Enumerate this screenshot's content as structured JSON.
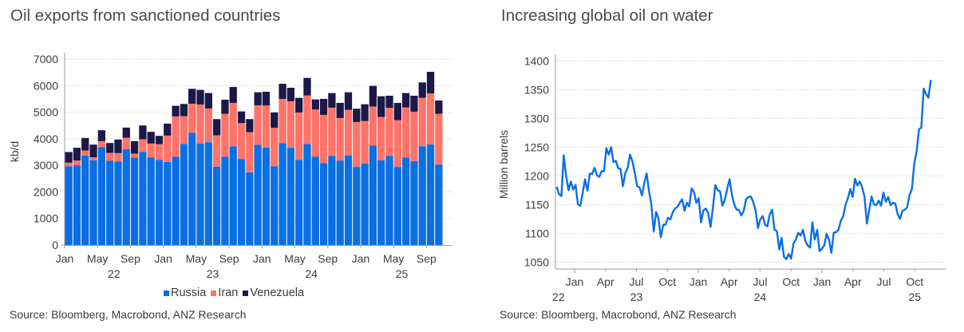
{
  "sources": {
    "left": "Source: Bloomberg, Macrobond, ANZ Research",
    "right": "Source: Bloomberg, Macrobond, ANZ Research"
  },
  "colors": {
    "russia": "#0a6fe3",
    "iran": "#ff7369",
    "venezuela": "#1c1848",
    "line": "#0a6fe3",
    "grid": "#d6d6d6",
    "axis": "#9a9a9a"
  },
  "chart_data": [
    {
      "type": "bar",
      "stacked": true,
      "title": "Oil exports from sanctioned countries",
      "xlabel": "",
      "ylabel": "kb/d",
      "ylim": [
        0,
        7000
      ],
      "yticks": [
        0,
        1000,
        2000,
        3000,
        4000,
        5000,
        6000,
        7000
      ],
      "grid": true,
      "legend_position": "bottom",
      "period": "monthly, Jan 2022 - Oct 2025",
      "x_tick_labels": [
        {
          "index": 0,
          "label": "Jan"
        },
        {
          "index": 4,
          "label": "May"
        },
        {
          "index": 8,
          "label": "Sep"
        },
        {
          "index": 12,
          "label": "Jan"
        },
        {
          "index": 16,
          "label": "May"
        },
        {
          "index": 20,
          "label": "Sep"
        },
        {
          "index": 24,
          "label": "Jan"
        },
        {
          "index": 28,
          "label": "May"
        },
        {
          "index": 32,
          "label": "Sep"
        },
        {
          "index": 36,
          "label": "Jan"
        },
        {
          "index": 40,
          "label": "May"
        },
        {
          "index": 44,
          "label": "Sep"
        }
      ],
      "year_labels": [
        {
          "center_index": 6,
          "label": "22"
        },
        {
          "center_index": 18,
          "label": "23"
        },
        {
          "center_index": 30,
          "label": "24"
        },
        {
          "center_index": 41,
          "label": "25"
        }
      ],
      "categories": [
        "Jan 22",
        "Feb 22",
        "Mar 22",
        "Apr 22",
        "May 22",
        "Jun 22",
        "Jul 22",
        "Aug 22",
        "Sep 22",
        "Oct 22",
        "Nov 22",
        "Dec 22",
        "Jan 23",
        "Feb 23",
        "Mar 23",
        "Apr 23",
        "May 23",
        "Jun 23",
        "Jul 23",
        "Aug 23",
        "Sep 23",
        "Oct 23",
        "Nov 23",
        "Dec 23",
        "Jan 24",
        "Feb 24",
        "Mar 24",
        "Apr 24",
        "May 24",
        "Jun 24",
        "Jul 24",
        "Aug 24",
        "Sep 24",
        "Oct 24",
        "Nov 24",
        "Dec 24",
        "Jan 25",
        "Feb 25",
        "Mar 25",
        "Apr 25",
        "May 25",
        "Jun 25",
        "Jul 25",
        "Aug 25",
        "Sep 25",
        "Oct 25"
      ],
      "series": [
        {
          "name": "Russia",
          "color_key": "russia",
          "values": [
            2960,
            3000,
            3370,
            3190,
            3680,
            3170,
            3140,
            3610,
            3290,
            3510,
            3300,
            3200,
            3130,
            3320,
            3810,
            4230,
            3820,
            3870,
            2950,
            3330,
            3720,
            3240,
            2740,
            3770,
            3670,
            2960,
            3830,
            3660,
            3210,
            3800,
            3330,
            3090,
            3360,
            3180,
            3370,
            2940,
            3070,
            3750,
            3190,
            3360,
            2940,
            3300,
            3160,
            3720,
            3790,
            3030
          ]
        },
        {
          "name": "Iran",
          "color_key": "iran",
          "values": [
            140,
            180,
            190,
            110,
            230,
            300,
            320,
            430,
            150,
            470,
            520,
            600,
            990,
            1520,
            1040,
            1090,
            1470,
            1270,
            1180,
            1610,
            1630,
            1350,
            1510,
            1490,
            1580,
            1450,
            1670,
            1750,
            1780,
            1830,
            1770,
            1810,
            1810,
            1600,
            1720,
            1690,
            1600,
            1460,
            1630,
            1800,
            1760,
            1880,
            1860,
            1820,
            1920,
            1910
          ]
        },
        {
          "name": "Venezuela",
          "color_key": "venezuela",
          "values": [
            400,
            480,
            470,
            480,
            410,
            370,
            510,
            380,
            470,
            520,
            440,
            310,
            450,
            400,
            460,
            560,
            550,
            580,
            610,
            530,
            600,
            440,
            490,
            490,
            520,
            580,
            570,
            510,
            550,
            660,
            380,
            600,
            550,
            570,
            660,
            500,
            630,
            780,
            780,
            460,
            650,
            540,
            600,
            580,
            810,
            500
          ]
        }
      ]
    },
    {
      "type": "line",
      "title": "Increasing global oil on water",
      "xlabel": "",
      "ylabel": "Million barrels",
      "ylim": [
        1038,
        1410
      ],
      "yticks": [
        1050,
        1100,
        1150,
        1200,
        1250,
        1300,
        1350,
        1400
      ],
      "grid": true,
      "legend_position": "none",
      "x_start_year": 2022.855,
      "x_end_year": 2025.88,
      "x_range_years": [
        2022.75,
        2025.99
      ],
      "x_tick_labels": [
        {
          "year": 2023.0,
          "label": "Jan",
          "major": true
        },
        {
          "year": 2023.25,
          "label": "Apr"
        },
        {
          "year": 2023.5,
          "label": "Jul"
        },
        {
          "year": 2023.75,
          "label": "Oct"
        },
        {
          "year": 2024.0,
          "label": "Jan",
          "major": true
        },
        {
          "year": 2024.25,
          "label": "Apr"
        },
        {
          "year": 2024.5,
          "label": "Jul"
        },
        {
          "year": 2024.75,
          "label": "Oct"
        },
        {
          "year": 2025.0,
          "label": "Jan",
          "major": true
        },
        {
          "year": 2025.25,
          "label": "Apr"
        },
        {
          "year": 2025.5,
          "label": "Jul"
        },
        {
          "year": 2025.75,
          "label": "Oct"
        }
      ],
      "year_labels": [
        {
          "year": 2022.87,
          "label": "22"
        },
        {
          "year": 2023.5,
          "label": "23"
        },
        {
          "year": 2024.5,
          "label": "24"
        },
        {
          "year": 2025.75,
          "label": "25"
        }
      ],
      "series": [
        {
          "name": "Global oil on water",
          "color_key": "line",
          "frequency": "weekly",
          "values": [
            1181,
            1168,
            1165,
            1236,
            1200,
            1175,
            1190,
            1176,
            1184,
            1150,
            1148,
            1170,
            1194,
            1174,
            1204,
            1203,
            1214,
            1201,
            1198,
            1208,
            1208,
            1248,
            1237,
            1250,
            1224,
            1226,
            1213,
            1212,
            1182,
            1205,
            1214,
            1237,
            1225,
            1205,
            1182,
            1180,
            1166,
            1187,
            1204,
            1173,
            1150,
            1103,
            1137,
            1126,
            1093,
            1115,
            1115,
            1127,
            1124,
            1136,
            1143,
            1146,
            1153,
            1159,
            1139,
            1153,
            1147,
            1178,
            1172,
            1153,
            1161,
            1119,
            1140,
            1143,
            1136,
            1111,
            1145,
            1184,
            1175,
            1173,
            1148,
            1158,
            1177,
            1194,
            1168,
            1150,
            1141,
            1141,
            1131,
            1139,
            1159,
            1163,
            1164,
            1155,
            1140,
            1109,
            1124,
            1130,
            1115,
            1112,
            1133,
            1141,
            1106,
            1104,
            1072,
            1092,
            1059,
            1055,
            1064,
            1056,
            1082,
            1089,
            1101,
            1096,
            1106,
            1087,
            1079,
            1075,
            1119,
            1089,
            1106,
            1069,
            1073,
            1079,
            1099,
            1089,
            1066,
            1101,
            1102,
            1106,
            1122,
            1129,
            1150,
            1161,
            1177,
            1163,
            1195,
            1183,
            1190,
            1180,
            1164,
            1117,
            1140,
            1164,
            1150,
            1149,
            1157,
            1148,
            1171,
            1155,
            1163,
            1149,
            1153,
            1152,
            1133,
            1125,
            1139,
            1141,
            1145,
            1166,
            1177,
            1221,
            1242,
            1281,
            1284,
            1352,
            1342,
            1336,
            1367
          ]
        }
      ]
    }
  ]
}
